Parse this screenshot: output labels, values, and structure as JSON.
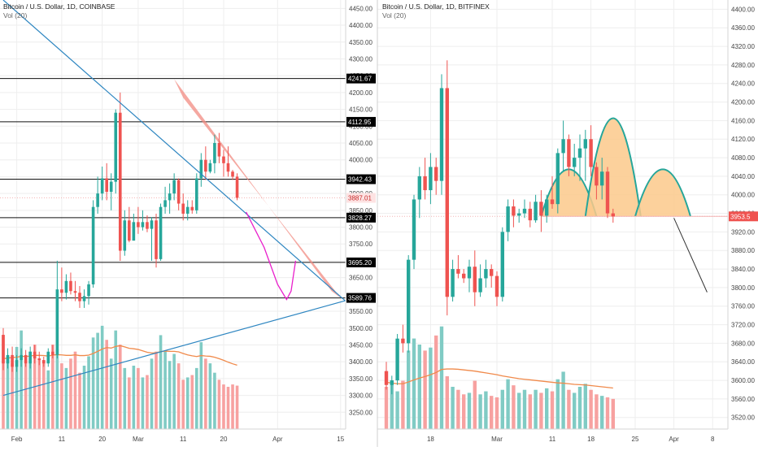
{
  "colors": {
    "up": "#26a69a",
    "down": "#ef5350",
    "vol_up": "#80cbc4",
    "vol_down": "#f7a1a0",
    "ma": "#f08a4b",
    "trend": "#2e86c1",
    "band": "#f28b82",
    "path": "#e91ecb",
    "cup_fill": "#fcc98b",
    "cup_stroke": "#26a69a",
    "proj": "#333333",
    "grid": "#eeeeee",
    "axis_text": "#444444"
  },
  "chart_data": [
    {
      "type": "candlestick",
      "title": "Bitcoin / U.S. Dollar, 1D, COINBASE",
      "subtitle": "Vol (20)",
      "ylim": [
        3200,
        4475
      ],
      "y_ticks": [
        3250,
        3300,
        3350,
        3400,
        3450,
        3500,
        3550,
        3650,
        3700,
        3750,
        3800,
        3850,
        3900,
        3950,
        4000,
        4050,
        4100,
        4150,
        4200,
        4250,
        4300,
        4350,
        4400,
        4450
      ],
      "x_tick_labels": [
        {
          "label": "Feb",
          "idx": 3
        },
        {
          "label": "11",
          "idx": 13
        },
        {
          "label": "20",
          "idx": 22
        },
        {
          "label": "Mar",
          "idx": 30
        },
        {
          "label": "11",
          "idx": 40
        },
        {
          "label": "20",
          "idx": 49
        },
        {
          "label": "Apr",
          "idx": 61
        },
        {
          "label": "15",
          "idx": 75
        }
      ],
      "x_slots": 77,
      "price_labels": [
        {
          "value": 4241.67,
          "line": true
        },
        {
          "value": 4112.95,
          "line": true
        },
        {
          "value": 3942.43,
          "line": true
        },
        {
          "value": 3887.01,
          "line": false,
          "current": true
        },
        {
          "value": 3828.27,
          "line": true
        },
        {
          "value": 3695.2,
          "line": true
        },
        {
          "value": 3589.76,
          "line": true
        }
      ],
      "ohlc": [
        [
          3480,
          3500,
          3375,
          3395
        ],
        [
          3395,
          3440,
          3380,
          3420
        ],
        [
          3420,
          3445,
          3370,
          3385
        ],
        [
          3385,
          3420,
          3370,
          3405
        ],
        [
          3405,
          3440,
          3385,
          3420
        ],
        [
          3420,
          3435,
          3385,
          3395
        ],
        [
          3395,
          3445,
          3380,
          3430
        ],
        [
          3430,
          3450,
          3395,
          3410
        ],
        [
          3410,
          3430,
          3390,
          3405
        ],
        [
          3405,
          3415,
          3385,
          3395
        ],
        [
          3395,
          3440,
          3385,
          3430
        ],
        [
          3430,
          3450,
          3410,
          3420
        ],
        [
          3420,
          3700,
          3410,
          3615
        ],
        [
          3615,
          3680,
          3580,
          3605
        ],
        [
          3605,
          3660,
          3585,
          3640
        ],
        [
          3640,
          3665,
          3600,
          3610
        ],
        [
          3610,
          3640,
          3580,
          3605
        ],
        [
          3605,
          3625,
          3560,
          3580
        ],
        [
          3580,
          3615,
          3560,
          3595
        ],
        [
          3595,
          3640,
          3570,
          3630
        ],
        [
          3630,
          3880,
          3620,
          3860
        ],
        [
          3860,
          3950,
          3840,
          3900
        ],
        [
          3900,
          3980,
          3880,
          3945
        ],
        [
          3945,
          3990,
          3880,
          3905
        ],
        [
          3905,
          3960,
          3850,
          3935
        ],
        [
          3935,
          4150,
          3900,
          4140
        ],
        [
          4140,
          4200,
          3700,
          3730
        ],
        [
          3730,
          3850,
          3715,
          3820
        ],
        [
          3820,
          3860,
          3755,
          3760
        ],
        [
          3760,
          3840,
          3760,
          3815
        ],
        [
          3815,
          3860,
          3780,
          3800
        ],
        [
          3800,
          3850,
          3790,
          3815
        ],
        [
          3815,
          3835,
          3785,
          3795
        ],
        [
          3795,
          3830,
          3700,
          3820
        ],
        [
          3820,
          3840,
          3680,
          3705
        ],
        [
          3705,
          3870,
          3700,
          3860
        ],
        [
          3860,
          3920,
          3840,
          3880
        ],
        [
          3880,
          3930,
          3840,
          3900
        ],
        [
          3900,
          3960,
          3880,
          3940
        ],
        [
          3940,
          3945,
          3850,
          3870
        ],
        [
          3870,
          3900,
          3820,
          3840
        ],
        [
          3840,
          3880,
          3820,
          3860
        ],
        [
          3860,
          3880,
          3840,
          3850
        ],
        [
          3850,
          3960,
          3840,
          3945
        ],
        [
          3945,
          4020,
          3920,
          4000
        ],
        [
          4000,
          4040,
          3940,
          3965
        ],
        [
          3965,
          4000,
          3960,
          3990
        ],
        [
          3990,
          4075,
          3960,
          4050
        ],
        [
          4050,
          4080,
          3990,
          4010
        ],
        [
          4010,
          4030,
          3950,
          3990
        ],
        [
          3990,
          4040,
          3950,
          3965
        ],
        [
          3965,
          3970,
          3940,
          3950
        ],
        [
          3950,
          3960,
          3880,
          3887
        ]
      ],
      "volume": [
        400,
        310,
        280,
        350,
        420,
        280,
        330,
        360,
        300,
        290,
        250,
        360,
        340,
        280,
        260,
        300,
        330,
        240,
        270,
        310,
        390,
        410,
        440,
        380,
        300,
        420,
        360,
        260,
        220,
        270,
        260,
        220,
        230,
        300,
        330,
        400,
        330,
        290,
        320,
        280,
        210,
        220,
        230,
        260,
        370,
        300,
        280,
        240,
        210,
        190,
        180,
        190,
        185
      ],
      "volume_ma": [
        300,
        302,
        305,
        306,
        310,
        309,
        311,
        314,
        314,
        313,
        311,
        315,
        317,
        316,
        314,
        314,
        316,
        313,
        313,
        315,
        322,
        331,
        341,
        347,
        345,
        352,
        355,
        350,
        344,
        342,
        339,
        333,
        327,
        324,
        325,
        330,
        332,
        331,
        331,
        329,
        322,
        316,
        312,
        309,
        313,
        311,
        310,
        306,
        300,
        293,
        285,
        278,
        272
      ],
      "trendlines": [
        {
          "points": [
            [
              0,
              4475
            ],
            [
              77,
              3570
            ]
          ]
        },
        {
          "points": [
            [
              0,
              3300
            ],
            [
              77,
              3585
            ]
          ]
        }
      ],
      "band": [
        [
          38,
          4240
        ],
        [
          40,
          4185
        ],
        [
          75,
          3590
        ],
        [
          73,
          3610
        ]
      ],
      "projection_path": [
        [
          54,
          3845
        ],
        [
          58,
          3740
        ],
        [
          61,
          3630
        ],
        [
          63,
          3585
        ],
        [
          64,
          3610
        ],
        [
          65,
          3700
        ]
      ]
    },
    {
      "type": "candlestick",
      "title": "Bitcoin / U.S. Dollar, 1D, BITFINEX",
      "subtitle": "Vol (20)",
      "ylim": [
        3495,
        4420
      ],
      "y_ticks": [
        3520,
        3560,
        3600,
        3640,
        3680,
        3720,
        3760,
        3800,
        3840,
        3880,
        3920,
        3960,
        4000,
        4040,
        4080,
        4120,
        4160,
        4200,
        4240,
        4280,
        4320,
        4360,
        4400
      ],
      "x_tick_labels": [
        {
          "label": "18",
          "idx": 8
        },
        {
          "label": "Mar",
          "idx": 20
        },
        {
          "label": "11",
          "idx": 30
        },
        {
          "label": "18",
          "idx": 37
        },
        {
          "label": "25",
          "idx": 45
        },
        {
          "label": "Apr",
          "idx": 52
        },
        {
          "label": "8",
          "idx": 59
        }
      ],
      "x_slots": 64,
      "price_labels": [
        {
          "value": 3953.5,
          "line": false,
          "current": true
        }
      ],
      "ohlc": [
        [
          3620,
          3640,
          3580,
          3590
        ],
        [
          3590,
          3610,
          3570,
          3600
        ],
        [
          3600,
          3700,
          3590,
          3690
        ],
        [
          3690,
          3720,
          3660,
          3680
        ],
        [
          3680,
          3870,
          3660,
          3860
        ],
        [
          3860,
          4000,
          3840,
          3990
        ],
        [
          3990,
          4060,
          3950,
          4040
        ],
        [
          4040,
          4080,
          3990,
          4010
        ],
        [
          4010,
          4090,
          3980,
          4060
        ],
        [
          4060,
          4080,
          4000,
          4030
        ],
        [
          4030,
          4260,
          4000,
          4230
        ],
        [
          4230,
          4290,
          3740,
          3780
        ],
        [
          3780,
          3860,
          3770,
          3840
        ],
        [
          3840,
          3870,
          3820,
          3830
        ],
        [
          3830,
          3840,
          3810,
          3820
        ],
        [
          3820,
          3860,
          3790,
          3845
        ],
        [
          3845,
          3880,
          3760,
          3790
        ],
        [
          3790,
          3850,
          3780,
          3820
        ],
        [
          3820,
          3860,
          3800,
          3840
        ],
        [
          3840,
          3850,
          3800,
          3825
        ],
        [
          3825,
          3835,
          3760,
          3780
        ],
        [
          3780,
          3930,
          3770,
          3920
        ],
        [
          3920,
          3990,
          3900,
          3975
        ],
        [
          3975,
          3990,
          3930,
          3955
        ],
        [
          3955,
          3970,
          3940,
          3960
        ],
        [
          3960,
          3990,
          3950,
          3970
        ],
        [
          3970,
          3985,
          3930,
          3945
        ],
        [
          3945,
          4000,
          3940,
          3985
        ],
        [
          3985,
          4010,
          3920,
          3955
        ],
        [
          3955,
          4000,
          3940,
          3990
        ],
        [
          3990,
          4040,
          3970,
          3980
        ],
        [
          3980,
          4100,
          3960,
          4090
        ],
        [
          4090,
          4160,
          4050,
          4120
        ],
        [
          4120,
          4130,
          4040,
          4060
        ],
        [
          4060,
          4110,
          4040,
          4080
        ],
        [
          4080,
          4130,
          4030,
          4100
        ],
        [
          4100,
          4140,
          4030,
          4120
        ],
        [
          4120,
          4150,
          4040,
          4060
        ],
        [
          4060,
          4070,
          3990,
          4020
        ],
        [
          4020,
          4080,
          3990,
          4050
        ],
        [
          4050,
          4060,
          3950,
          3960
        ],
        [
          3960,
          3970,
          3940,
          3953.5
        ]
      ],
      "volume": [
        280,
        300,
        250,
        320,
        520,
        600,
        560,
        520,
        540,
        620,
        680,
        350,
        280,
        260,
        230,
        240,
        320,
        230,
        250,
        220,
        210,
        260,
        330,
        290,
        240,
        260,
        230,
        260,
        240,
        270,
        250,
        330,
        380,
        260,
        240,
        280,
        300,
        260,
        230,
        220,
        210,
        200
      ],
      "volume_ma": [
        310,
        305,
        300,
        300,
        312,
        326,
        338,
        348,
        360,
        375,
        395,
        398,
        398,
        396,
        392,
        388,
        384,
        378,
        372,
        366,
        360,
        352,
        346,
        340,
        334,
        330,
        326,
        322,
        318,
        314,
        310,
        306,
        304,
        300,
        296,
        294,
        292,
        288,
        284,
        280,
        276,
        272
      ],
      "cups": [
        [
          28,
          3953.5,
          38,
          3953.5,
          4055
        ],
        [
          36,
          3953.5,
          46,
          3953.5,
          4165
        ],
        [
          45,
          3953.5,
          55,
          3953.5,
          4055
        ]
      ],
      "neckline": [
        [
          28,
          3953.5
        ],
        [
          55,
          3953.5
        ]
      ],
      "projection_line": [
        [
          52,
          3950
        ],
        [
          58,
          3790
        ]
      ]
    }
  ]
}
